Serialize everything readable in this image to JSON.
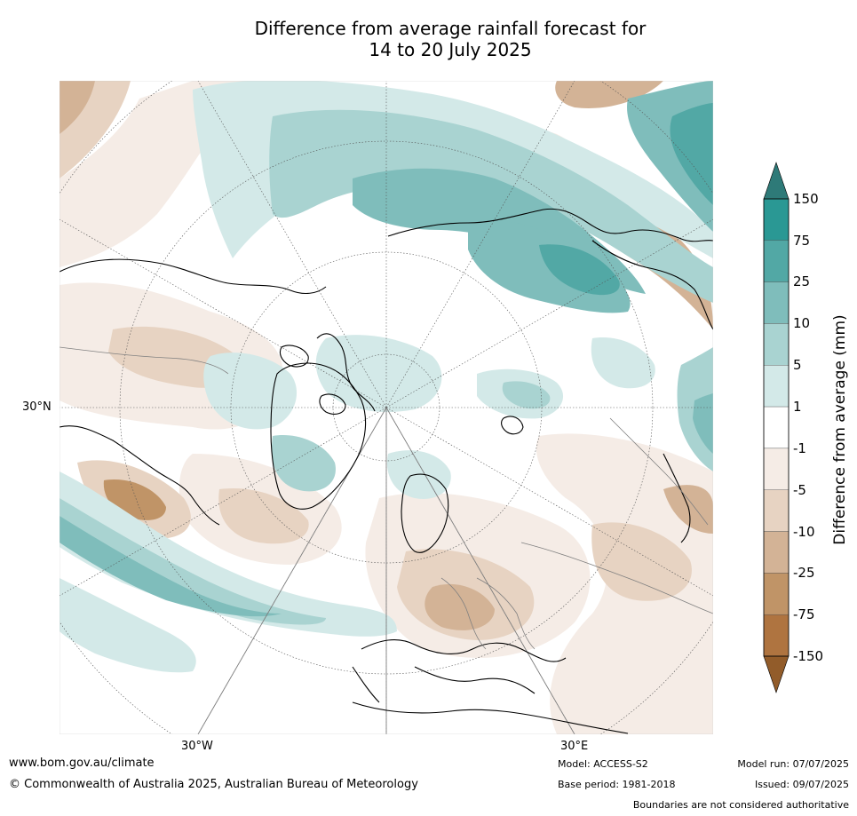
{
  "title": {
    "line1": "Difference from average rainfall forecast for",
    "line2": "14 to 20 July 2025"
  },
  "map": {
    "axis_labels": {
      "lat_30n": "30°N",
      "lon_30w": "30°W",
      "lon_30e": "30°E"
    },
    "gridline_color": "#555555",
    "coastline_color": "#000000",
    "border_color": "#808080"
  },
  "colorbar": {
    "title": "Difference from average (mm)",
    "ticks": [
      "150",
      "75",
      "25",
      "10",
      "5",
      "1",
      "-1",
      "-5",
      "-10",
      "-25",
      "-75",
      "-150"
    ],
    "band_colors": [
      "#2a9894",
      "#52a8a5",
      "#7fbdbb",
      "#a9d3d1",
      "#d3e9e8",
      "#ffffff",
      "#f5ece6",
      "#e7d3c2",
      "#d3b396",
      "#c09467",
      "#af7440"
    ],
    "over_color": "#2e7a78",
    "under_color": "#925c2a"
  },
  "footer": {
    "url": "www.bom.gov.au/climate",
    "copyright": "© Commonwealth of Australia 2025, Australian Bureau of Meteorology",
    "model": "Model: ACCESS-S2",
    "base_period": "Base period: 1981-2018",
    "model_run": "Model run: 07/07/2025",
    "issued": "Issued: 09/07/2025",
    "disclaimer": "Boundaries are not considered authoritative"
  }
}
